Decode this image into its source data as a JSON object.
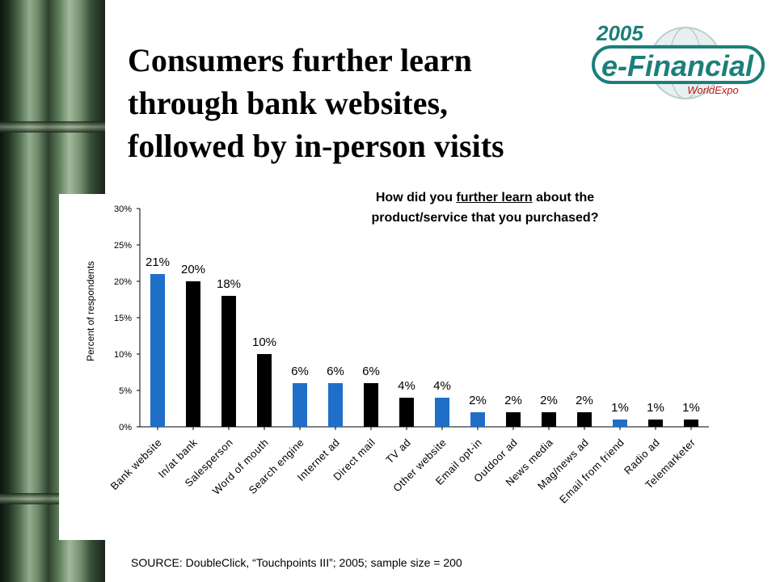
{
  "slide": {
    "title_lines": [
      "Consumers further learn",
      "through bank websites,",
      "followed by in-person visits"
    ],
    "source": "SOURCE: DoubleClick, “Touchpoints III”; 2005; sample size = 200"
  },
  "logo": {
    "year": "2005",
    "name": "e-Financial",
    "sub": "WorldExpo"
  },
  "question": {
    "line1_pre": "How did you ",
    "line1_underlined": "further learn",
    "line1_post": " about the",
    "line2": "product/service that you purchased?"
  },
  "colors": {
    "blue": "#1f6fc9",
    "black": "#000000",
    "logo_teal": "#1c7f7a"
  },
  "chart_data": {
    "type": "bar",
    "ylabel": "Percent of respondents",
    "ylim": [
      0,
      30
    ],
    "yticks": [
      0,
      5,
      10,
      15,
      20,
      25,
      30
    ],
    "ytick_labels": [
      "0%",
      "5%",
      "10%",
      "15%",
      "20%",
      "25%",
      "30%"
    ],
    "categories": [
      "Bank website",
      "In/at bank",
      "Salesperson",
      "Word of mouth",
      "Search engine",
      "Internet ad",
      "Direct mail",
      "TV ad",
      "Other website",
      "Email opt-in",
      "Outdoor ad",
      "News media",
      "Mag/news ad",
      "Email from friend",
      "Radio ad",
      "Telemarketer"
    ],
    "values": [
      21,
      20,
      18,
      10,
      6,
      6,
      6,
      4,
      4,
      2,
      2,
      2,
      2,
      1,
      1,
      1
    ],
    "value_labels": [
      "21%",
      "20%",
      "18%",
      "10%",
      "6%",
      "6%",
      "6%",
      "4%",
      "4%",
      "2%",
      "2%",
      "2%",
      "2%",
      "1%",
      "1%",
      "1%"
    ],
    "bar_colors": [
      "blue",
      "black",
      "black",
      "black",
      "blue",
      "blue",
      "black",
      "black",
      "blue",
      "blue",
      "black",
      "black",
      "black",
      "blue",
      "black",
      "black"
    ],
    "grid": false,
    "legend": "none"
  }
}
